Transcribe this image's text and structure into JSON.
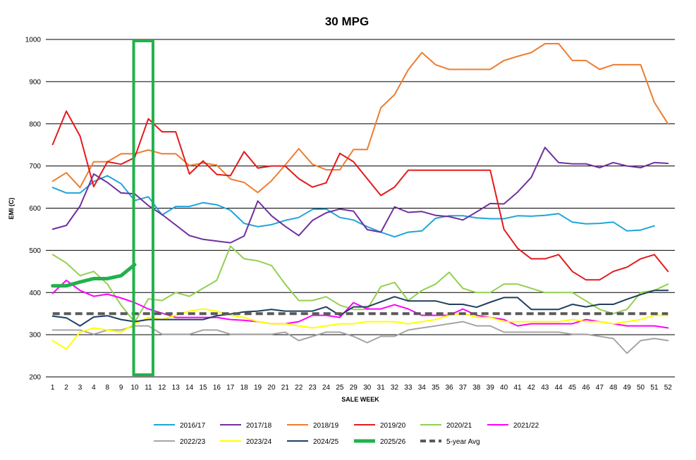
{
  "chart_data": {
    "type": "line",
    "title": "30 MPG",
    "xlabel": "SALE WEEK",
    "ylabel": "EMI (C)",
    "ylim": [
      200,
      1000
    ],
    "yticks": [
      200,
      300,
      400,
      500,
      600,
      700,
      800,
      900,
      1000
    ],
    "grid": "horizontal",
    "legend_position": "bottom",
    "categories": [
      "1",
      "2",
      "3",
      "4",
      "8",
      "9",
      "10",
      "11",
      "12",
      "13",
      "14",
      "15",
      "16",
      "17",
      "18",
      "19",
      "20",
      "21",
      "22",
      "23",
      "24",
      "25",
      "29",
      "30",
      "31",
      "32",
      "33",
      "34",
      "35",
      "36",
      "37",
      "38",
      "39",
      "40",
      "41",
      "42",
      "43",
      "44",
      "45",
      "46",
      "47",
      "48",
      "49",
      "50",
      "51",
      "52"
    ],
    "highlight": {
      "from": "10",
      "to": "11",
      "color": "#22b14c"
    },
    "series": [
      {
        "name": "2016/17",
        "color": "#1fa5d9",
        "width": 2,
        "values": [
          649,
          636,
          636,
          663,
          677,
          658,
          618,
          627,
          584,
          604,
          604,
          613,
          608,
          595,
          564,
          556,
          561,
          571,
          578,
          597,
          598,
          578,
          572,
          556,
          543,
          532,
          543,
          546,
          576,
          582,
          582,
          577,
          575,
          575,
          582,
          581,
          583,
          587,
          567,
          563,
          564,
          567,
          546,
          548,
          558,
          null
        ]
      },
      {
        "name": "2017/18",
        "color": "#7030a0",
        "width": 2,
        "values": [
          550,
          559,
          605,
          681,
          661,
          636,
          634,
          606,
          585,
          560,
          535,
          526,
          522,
          518,
          534,
          617,
          582,
          557,
          535,
          571,
          589,
          598,
          593,
          549,
          543,
          603,
          590,
          592,
          583,
          580,
          572,
          591,
          611,
          610,
          638,
          673,
          744,
          708,
          705,
          705,
          696,
          708,
          700,
          696,
          708,
          706
        ]
      },
      {
        "name": "2018/19",
        "color": "#ed7d31",
        "width": 2,
        "values": [
          664,
          684,
          649,
          710,
          710,
          729,
          729,
          738,
          729,
          729,
          701,
          707,
          702,
          669,
          661,
          637,
          665,
          702,
          741,
          704,
          691,
          691,
          739,
          739,
          838,
          869,
          928,
          969,
          940,
          929,
          929,
          929,
          929,
          950,
          960,
          969,
          990,
          990,
          950,
          950,
          929,
          940,
          940,
          940,
          851,
          800
        ]
      },
      {
        "name": "2019/20",
        "color": "#e31a1c",
        "width": 2,
        "values": [
          751,
          830,
          771,
          651,
          710,
          704,
          720,
          812,
          781,
          781,
          681,
          712,
          680,
          677,
          734,
          695,
          700,
          700,
          670,
          650,
          660,
          730,
          710,
          670,
          630,
          650,
          690,
          690,
          690,
          690,
          690,
          690,
          690,
          550,
          505,
          480,
          480,
          490,
          450,
          430,
          430,
          450,
          460,
          480,
          490,
          450
        ]
      },
      {
        "name": "2020/21",
        "color": "#92d050",
        "width": 2,
        "values": [
          490,
          470,
          440,
          450,
          420,
          370,
          330,
          385,
          381,
          400,
          391,
          410,
          429,
          510,
          480,
          475,
          464,
          420,
          381,
          381,
          390,
          370,
          360,
          360,
          414,
          424,
          381,
          405,
          420,
          448,
          410,
          400,
          400,
          420,
          420,
          410,
          400,
          400,
          400,
          380,
          360,
          350,
          360,
          400,
          405,
          420
        ]
      },
      {
        "name": "2021/22",
        "color": "#ff00ff",
        "width": 2,
        "values": [
          398,
          429,
          405,
          391,
          396,
          387,
          376,
          361,
          351,
          341,
          341,
          341,
          341,
          336,
          334,
          331,
          326,
          326,
          331,
          346,
          346,
          341,
          376,
          361,
          361,
          371,
          361,
          346,
          346,
          346,
          361,
          346,
          341,
          336,
          321,
          326,
          326,
          326,
          326,
          336,
          331,
          326,
          321,
          321,
          321,
          316
        ]
      },
      {
        "name": "2022/23",
        "color": "#a5a5a5",
        "width": 2,
        "values": [
          311,
          311,
          311,
          301,
          311,
          311,
          321,
          321,
          301,
          301,
          301,
          311,
          311,
          301,
          301,
          301,
          301,
          306,
          286,
          296,
          306,
          306,
          296,
          281,
          296,
          296,
          311,
          316,
          321,
          326,
          331,
          321,
          321,
          306,
          306,
          306,
          306,
          306,
          301,
          301,
          296,
          291,
          256,
          286,
          291,
          286
        ]
      },
      {
        "name": "2023/24",
        "color": "#ffff00",
        "width": 2,
        "values": [
          286,
          266,
          306,
          316,
          311,
          306,
          326,
          341,
          336,
          346,
          356,
          361,
          356,
          346,
          341,
          331,
          326,
          326,
          321,
          316,
          321,
          326,
          326,
          331,
          331,
          331,
          326,
          331,
          336,
          346,
          351,
          341,
          341,
          331,
          331,
          331,
          331,
          331,
          336,
          331,
          331,
          326,
          331,
          336,
          346,
          346
        ]
      },
      {
        "name": "2024/25",
        "color": "#1f3f60",
        "width": 2,
        "values": [
          344,
          340,
          321,
          342,
          345,
          336,
          331,
          336,
          336,
          336,
          336,
          336,
          345,
          349,
          354,
          356,
          360,
          356,
          356,
          356,
          366,
          346,
          366,
          366,
          378,
          390,
          380,
          380,
          380,
          372,
          372,
          365,
          377,
          388,
          388,
          360,
          360,
          360,
          372,
          366,
          372,
          372,
          384,
          395,
          405,
          405
        ]
      },
      {
        "name": "2025/26",
        "color": "#22b14c",
        "width": 5,
        "values": [
          416,
          416,
          425,
          433,
          433,
          440,
          466,
          null,
          null,
          null,
          null,
          null,
          null,
          null,
          null,
          null,
          null,
          null,
          null,
          null,
          null,
          null,
          null,
          null,
          null,
          null,
          null,
          null,
          null,
          null,
          null,
          null,
          null,
          null,
          null,
          null,
          null,
          null,
          null,
          null,
          null,
          null,
          null,
          null,
          null,
          null
        ]
      },
      {
        "name": "5-year Avg",
        "color": "#595959",
        "width": 4,
        "dash": "10,6",
        "values": [
          350,
          350,
          350,
          350,
          350,
          350,
          350,
          350,
          350,
          350,
          350,
          350,
          350,
          350,
          350,
          350,
          350,
          350,
          350,
          350,
          350,
          350,
          350,
          350,
          350,
          350,
          350,
          350,
          350,
          350,
          350,
          350,
          350,
          350,
          350,
          350,
          350,
          350,
          350,
          350,
          350,
          350,
          350,
          350,
          350,
          350
        ]
      }
    ]
  }
}
